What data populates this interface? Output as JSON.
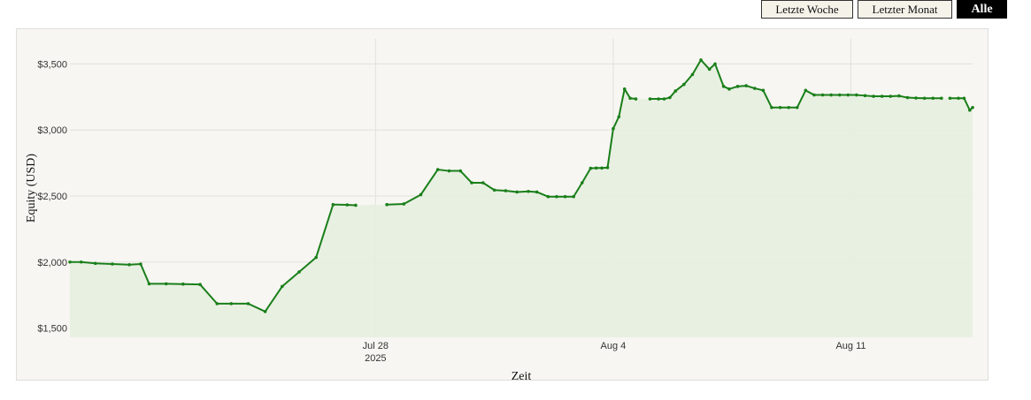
{
  "buttons": {
    "week": "Letzte Woche",
    "month": "Letzter Monat",
    "all": "Alle"
  },
  "colors": {
    "line": "#1a7f1a",
    "fill": "#e6f0e0",
    "grid": "#e2e2dc",
    "active_button": "#000000"
  },
  "chart_data": {
    "type": "area",
    "title": "",
    "xlabel": "Zeit",
    "ylabel": "Equity (USD)",
    "xlim": [
      "2025-07-19T00:00",
      "2025-08-14T14:00"
    ],
    "ylim": [
      1430,
      3690
    ],
    "y_ticks": [
      {
        "value": 1500,
        "label": "$1,500"
      },
      {
        "value": 2000,
        "label": "$2,000"
      },
      {
        "value": 2500,
        "label": "$2,500"
      },
      {
        "value": 3000,
        "label": "$3,000"
      },
      {
        "value": 3500,
        "label": "$3,500"
      }
    ],
    "x_ticks": [
      {
        "value": "2025-07-28T00:00",
        "label": "Jul 28",
        "sublabel": "2025"
      },
      {
        "value": "2025-08-04T00:00",
        "label": "Aug 4",
        "sublabel": ""
      },
      {
        "value": "2025-08-11T00:00",
        "label": "Aug 11",
        "sublabel": ""
      }
    ],
    "grid": true,
    "legend": "none",
    "segments": [
      {
        "x": [
          "2025-07-19T00:00",
          "2025-07-19T08:00",
          "2025-07-19T18:00",
          "2025-07-20T06:00",
          "2025-07-20T18:00",
          "2025-07-21T02:00",
          "2025-07-21T08:00",
          "2025-07-21T20:00",
          "2025-07-22T08:00",
          "2025-07-22T20:00",
          "2025-07-23T08:00",
          "2025-07-23T18:00",
          "2025-07-24T06:00",
          "2025-07-24T18:00",
          "2025-07-25T06:00",
          "2025-07-25T18:00",
          "2025-07-26T06:00",
          "2025-07-26T18:00",
          "2025-07-27T04:00",
          "2025-07-27T10:00"
        ],
        "y": [
          2000,
          2000,
          1990,
          1985,
          1980,
          1985,
          1835,
          1835,
          1833,
          1830,
          1685,
          1685,
          1685,
          1625,
          1815,
          1925,
          2035,
          2435,
          2433,
          2430
        ]
      },
      {
        "x": [
          "2025-07-28T08:00",
          "2025-07-28T20:00",
          "2025-07-29T08:00",
          "2025-07-29T20:00",
          "2025-07-30T04:00",
          "2025-07-30T12:00",
          "2025-07-30T20:00",
          "2025-07-31T04:00",
          "2025-07-31T12:00",
          "2025-07-31T20:00",
          "2025-08-01T04:00",
          "2025-08-01T12:00",
          "2025-08-01T18:00",
          "2025-08-02T02:00",
          "2025-08-02T08:00",
          "2025-08-02T14:00",
          "2025-08-02T20:00",
          "2025-08-03T02:00",
          "2025-08-03T08:00",
          "2025-08-03T12:00",
          "2025-08-03T16:00",
          "2025-08-03T20:00",
          "2025-08-04T00:00",
          "2025-08-04T04:00",
          "2025-08-04T08:00",
          "2025-08-04T12:00",
          "2025-08-04T16:00"
        ],
        "y": [
          2435,
          2440,
          2510,
          2700,
          2690,
          2690,
          2600,
          2600,
          2545,
          2540,
          2530,
          2535,
          2530,
          2495,
          2495,
          2495,
          2495,
          2600,
          2710,
          2712,
          2712,
          2715,
          3010,
          3100,
          3310,
          3240,
          3235
        ]
      },
      {
        "x": [
          "2025-08-05T02:00",
          "2025-08-05T08:00",
          "2025-08-05T12:00",
          "2025-08-05T16:00",
          "2025-08-05T20:00",
          "2025-08-06T02:00",
          "2025-08-06T08:00",
          "2025-08-06T14:00",
          "2025-08-06T20:00",
          "2025-08-07T00:00",
          "2025-08-07T06:00",
          "2025-08-07T10:00",
          "2025-08-07T16:00",
          "2025-08-07T22:00",
          "2025-08-08T04:00",
          "2025-08-08T10:00",
          "2025-08-08T16:00",
          "2025-08-08T22:00",
          "2025-08-09T04:00",
          "2025-08-09T10:00",
          "2025-08-09T16:00",
          "2025-08-09T22:00",
          "2025-08-10T04:00",
          "2025-08-10T10:00",
          "2025-08-10T16:00",
          "2025-08-10T22:00",
          "2025-08-11T04:00",
          "2025-08-11T10:00",
          "2025-08-11T16:00",
          "2025-08-11T22:00",
          "2025-08-12T04:00",
          "2025-08-12T10:00",
          "2025-08-12T16:00",
          "2025-08-12T22:00",
          "2025-08-13T04:00",
          "2025-08-13T10:00",
          "2025-08-13T16:00"
        ],
        "y": [
          3235,
          3235,
          3235,
          3245,
          3295,
          3345,
          3420,
          3530,
          3460,
          3500,
          3330,
          3310,
          3330,
          3335,
          3315,
          3300,
          3170,
          3170,
          3170,
          3170,
          3300,
          3265,
          3265,
          3265,
          3265,
          3265,
          3265,
          3260,
          3255,
          3255,
          3255,
          3258,
          3245,
          3242,
          3240,
          3240,
          3240
        ]
      },
      {
        "x": [
          "2025-08-13T22:00",
          "2025-08-14T04:00",
          "2025-08-14T08:00",
          "2025-08-14T12:00",
          "2025-08-14T14:00"
        ],
        "y": [
          3240,
          3240,
          3240,
          3150,
          3170
        ]
      }
    ]
  }
}
